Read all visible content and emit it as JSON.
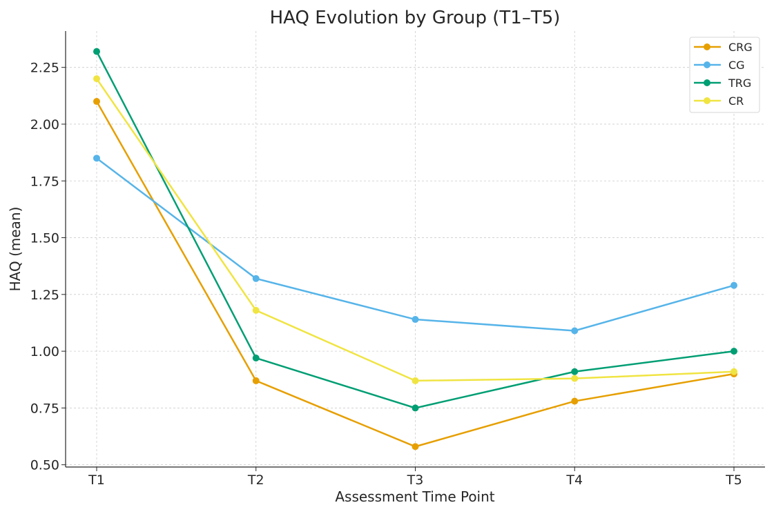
{
  "chart_data": {
    "type": "line",
    "title": "HAQ Evolution by Group (T1–T5)",
    "xlabel": "Assessment Time Point",
    "ylabel": "HAQ (mean)",
    "categories": [
      "T1",
      "T2",
      "T3",
      "T4",
      "T5"
    ],
    "ylim": [
      0.49,
      2.41
    ],
    "yticks": [
      "0.50",
      "0.75",
      "1.00",
      "1.25",
      "1.50",
      "1.75",
      "2.00",
      "2.25"
    ],
    "grid": true,
    "legend_position": "top-right",
    "series": [
      {
        "name": "CRG",
        "color": "#E69F00",
        "values": [
          2.1,
          0.87,
          0.58,
          0.78,
          0.9
        ]
      },
      {
        "name": "CG",
        "color": "#56B4E9",
        "values": [
          1.85,
          1.32,
          1.14,
          1.09,
          1.29
        ]
      },
      {
        "name": "TRG",
        "color": "#009E73",
        "values": [
          2.32,
          0.97,
          0.75,
          0.91,
          1.0
        ]
      },
      {
        "name": "CR",
        "color": "#F0E442",
        "values": [
          2.2,
          1.18,
          0.87,
          0.88,
          0.91
        ]
      }
    ]
  }
}
